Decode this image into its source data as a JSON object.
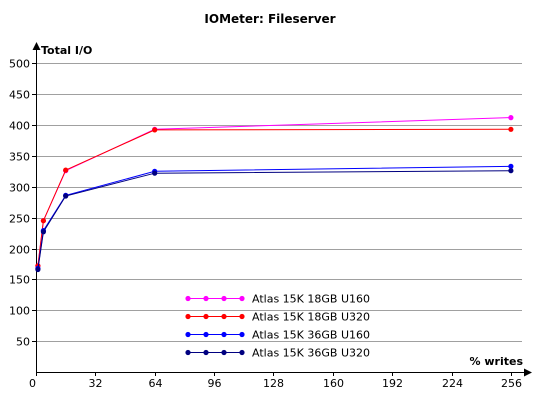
{
  "chart_data": {
    "type": "line",
    "title": "IOMeter: Fileserver",
    "xlabel": "% writes",
    "ylabel": "Total I/O",
    "x_ticks": [
      0,
      32,
      64,
      96,
      128,
      160,
      192,
      224,
      256
    ],
    "y_ticks": [
      50,
      100,
      150,
      200,
      250,
      300,
      350,
      400,
      450,
      500
    ],
    "xlim": [
      0,
      262
    ],
    "ylim": [
      0,
      515
    ],
    "grid": "horizontal",
    "legend_position": "bottom-center",
    "series": [
      {
        "name": "Atlas 15K 18GB U160",
        "color": "#ff00ff",
        "x": [
          1,
          4,
          16,
          64,
          256
        ],
        "y": [
          172,
          245,
          326,
          393,
          412
        ]
      },
      {
        "name": "Atlas 15K 18GB U320",
        "color": "#ff0000",
        "x": [
          1,
          4,
          16,
          64,
          256
        ],
        "y": [
          172,
          245,
          327,
          392,
          393
        ]
      },
      {
        "name": "Atlas 15K 36GB U160",
        "color": "#0000ff",
        "x": [
          1,
          4,
          16,
          64,
          256
        ],
        "y": [
          168,
          229,
          286,
          325,
          333
        ]
      },
      {
        "name": "Atlas 15K 36GB U320",
        "color": "#000080",
        "x": [
          1,
          4,
          16,
          64,
          256
        ],
        "y": [
          166,
          227,
          285,
          322,
          326
        ]
      }
    ]
  }
}
